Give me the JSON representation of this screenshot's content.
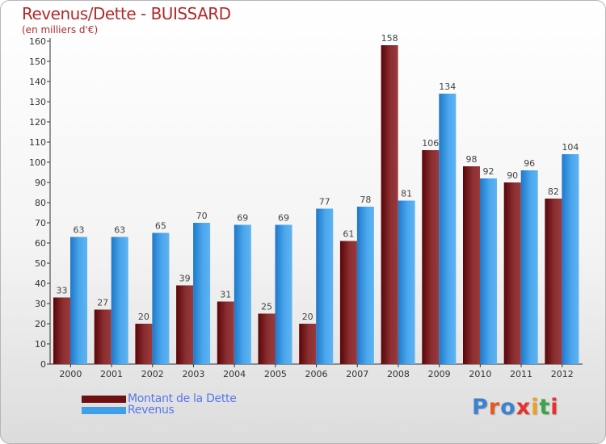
{
  "header": {
    "title": "Revenus/Dette - BUISSARD",
    "subtitle": "(en milliers d'€)"
  },
  "legend": {
    "items": [
      {
        "label": "Montant de la Dette",
        "color": "#6e0f12"
      },
      {
        "label": "Revenus",
        "color": "#3f9fe8"
      }
    ]
  },
  "logo": {
    "text": "Proxiti",
    "letter_colors": [
      "#3d82d0",
      "#e65a1e",
      "#3d82d0",
      "#e6322e",
      "#f0a020",
      "#3aa548",
      "#e6322e"
    ]
  },
  "colors": {
    "dette_dark": "#5a0508",
    "dette_light": "#9a3a3c",
    "revenus_dark": "#1f78c8",
    "revenus_light": "#5fb4f0",
    "axis_text": "#333333",
    "value_text": "#444444",
    "title": "#b22a2a"
  },
  "chart_data": {
    "type": "bar",
    "categories": [
      "2000",
      "2001",
      "2002",
      "2003",
      "2004",
      "2005",
      "2006",
      "2007",
      "2008",
      "2009",
      "2010",
      "2011",
      "2012"
    ],
    "series": [
      {
        "name": "Montant de la Dette",
        "values": [
          33,
          27,
          20,
          39,
          31,
          25,
          20,
          61,
          158,
          106,
          98,
          90,
          82
        ]
      },
      {
        "name": "Revenus",
        "values": [
          63,
          63,
          65,
          70,
          69,
          69,
          77,
          78,
          81,
          134,
          92,
          96,
          104
        ]
      }
    ],
    "title": "Revenus/Dette - BUISSARD",
    "subtitle": "(en milliers d'€)",
    "ylim": [
      0,
      160
    ],
    "yticks": [
      0,
      10,
      20,
      30,
      40,
      50,
      60,
      70,
      80,
      90,
      100,
      110,
      120,
      130,
      140,
      150,
      160
    ],
    "grid": false,
    "legend_position": "bottom-left"
  }
}
